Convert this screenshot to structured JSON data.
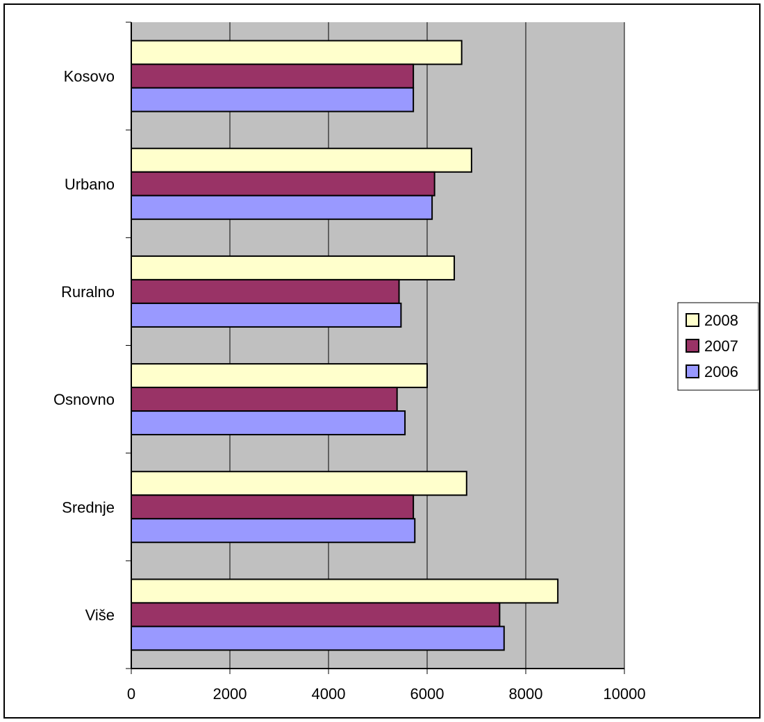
{
  "chart_data": {
    "type": "bar",
    "orientation": "horizontal",
    "categories": [
      "Kosovo",
      "Urbano",
      "Ruralno",
      "Osnovno",
      "Srednje",
      "Više"
    ],
    "series": [
      {
        "name": "2008",
        "color": "#FFFFCC",
        "values": [
          6700,
          6900,
          6550,
          6000,
          6800,
          8650
        ]
      },
      {
        "name": "2007",
        "color": "#993366",
        "values": [
          5720,
          6150,
          5430,
          5390,
          5720,
          7470
        ]
      },
      {
        "name": "2006",
        "color": "#9999FF",
        "values": [
          5720,
          6100,
          5470,
          5550,
          5750,
          7560
        ]
      }
    ],
    "xlim": [
      0,
      10000
    ],
    "xticks": [
      "0",
      "2000",
      "4000",
      "6000",
      "8000",
      "10000"
    ],
    "plot_background": "#C0C0C0",
    "grid": "vertical",
    "legend_position": "right",
    "legend": [
      "2008",
      "2007",
      "2006"
    ]
  }
}
